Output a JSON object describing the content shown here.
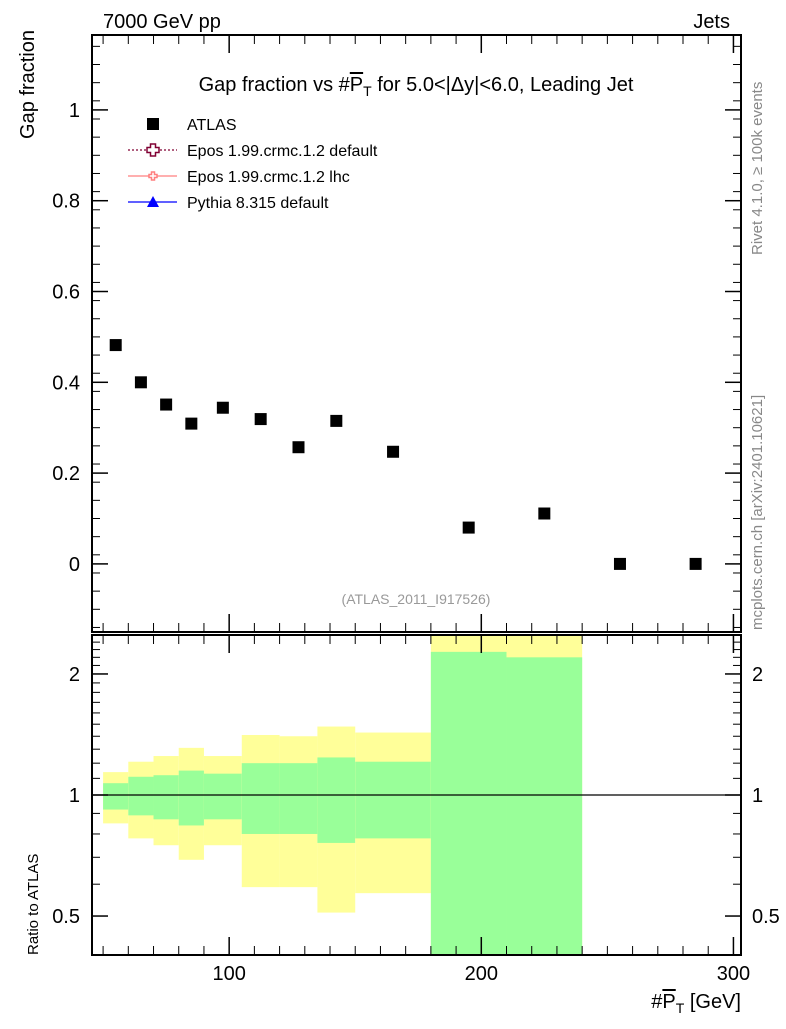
{
  "chart_data": [
    {
      "type": "scatter",
      "title": "Gap fraction vs #P_T for 5.0<|Δy|<6.0, Leading Jet",
      "title_parts": {
        "pre": "Gap fraction vs #",
        "p": "P",
        "sub": "T",
        "post": " for 5.0<|Δy|<6.0, Leading Jet"
      },
      "top_left": "7000 GeV pp",
      "top_right": "Jets",
      "ylabel": "Gap fraction",
      "xlim": [
        45.6,
        303
      ],
      "ylim": [
        -0.15,
        1.165
      ],
      "yticks": [
        0,
        0.2,
        0.4,
        0.6,
        0.8,
        1
      ],
      "ytick_labels": [
        "0",
        "0.2",
        "0.4",
        "0.6",
        "0.8",
        "1"
      ],
      "watermark": "(ATLAS_2011_I917526)",
      "side_text_top": "Rivet 4.1.0, ≥ 100k events",
      "side_text_bottom": "mcplots.cern.ch [arXiv:2401.10621]",
      "legend": [
        {
          "label": "ATLAS",
          "color": "#000000",
          "marker": "square"
        },
        {
          "label": "Epos 1.99.crmc.1.2 default",
          "color": "#800033",
          "marker": "open-cross",
          "dash": "dotted"
        },
        {
          "label": "Epos 1.99.crmc.1.2 lhc",
          "color": "#ff7f7f",
          "marker": "open-cross-small"
        },
        {
          "label": "Pythia 8.315 default",
          "color": "#0000ff",
          "marker": "triangle"
        }
      ],
      "series": [
        {
          "name": "ATLAS",
          "x": [
            55,
            65,
            75,
            85,
            97.5,
            112.5,
            127.5,
            142.5,
            165,
            195,
            225,
            255,
            285
          ],
          "y": [
            0.482,
            0.4,
            0.351,
            0.309,
            0.344,
            0.319,
            0.257,
            0.315,
            0.247,
            0.08,
            0.111,
            0.0,
            0.0
          ]
        }
      ]
    },
    {
      "type": "area",
      "ylabel": "Ratio to ATLAS",
      "xlabel": "#P_T [GeV]",
      "xlabel_parts": {
        "pre": "#",
        "p": "P",
        "sub": "T",
        "post": " [GeV]"
      },
      "yscale": "log",
      "ylim": [
        0.4,
        2.5
      ],
      "yticks": [
        0.5,
        1,
        2
      ],
      "ytick_labels": [
        "0.5",
        "1",
        "2"
      ],
      "xticks": [
        100,
        200,
        300
      ],
      "xtick_labels": [
        "100",
        "200",
        "300"
      ],
      "bin_edges": [
        50,
        60,
        70,
        80,
        90,
        105,
        120,
        135,
        150,
        180,
        210,
        240
      ],
      "bands": {
        "yellow_upper": [
          1.14,
          1.21,
          1.25,
          1.31,
          1.25,
          1.41,
          1.4,
          1.48,
          1.43,
          3.0,
          3.0
        ],
        "green_upper": [
          1.07,
          1.11,
          1.12,
          1.15,
          1.13,
          1.2,
          1.2,
          1.24,
          1.21,
          2.27,
          2.2
        ],
        "green_lower": [
          0.92,
          0.89,
          0.87,
          0.84,
          0.87,
          0.8,
          0.8,
          0.76,
          0.78,
          0.3,
          0.3
        ],
        "yellow_lower": [
          0.85,
          0.78,
          0.75,
          0.69,
          0.75,
          0.59,
          0.59,
          0.51,
          0.57,
          0.3,
          0.3
        ]
      },
      "colors": {
        "yellow": "#ffff99",
        "green": "#99ff99"
      }
    }
  ]
}
